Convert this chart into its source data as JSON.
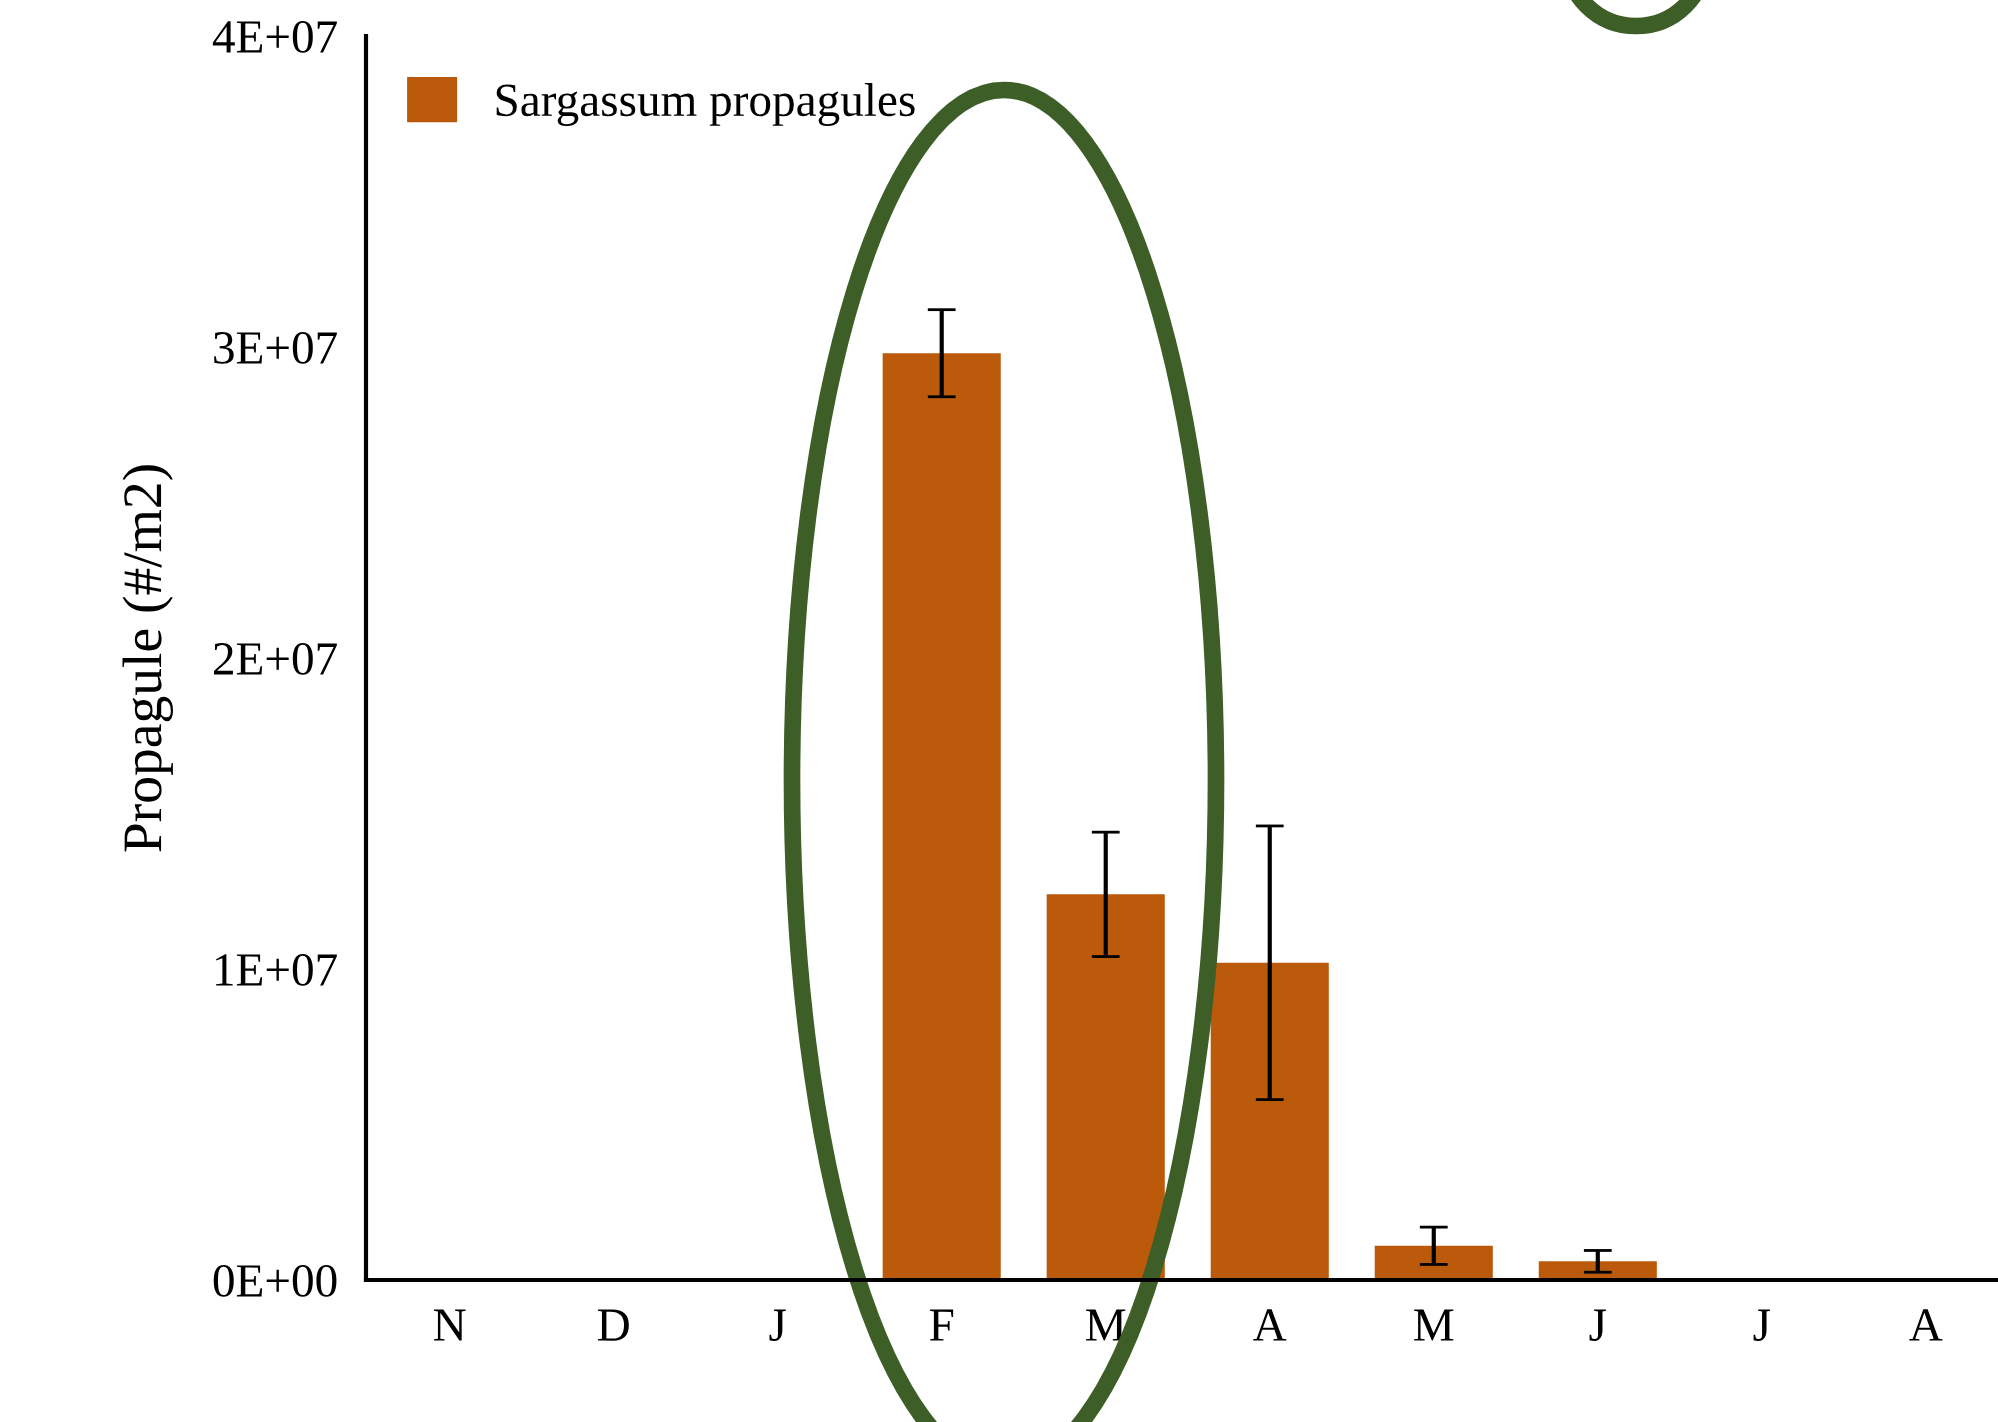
{
  "chart_data": {
    "type": "bar",
    "ylabel": "Propagule (#/m2)",
    "categories": [
      "N",
      "D",
      "J",
      "F",
      "M",
      "A",
      "M",
      "J",
      "J",
      "A"
    ],
    "series": [
      {
        "name": "Sargassum propagules",
        "color": "#bb5a0a",
        "values": [
          0,
          0,
          0,
          29800000,
          12400000,
          10200000,
          1100000,
          600000,
          0,
          0
        ],
        "errors": [
          null,
          null,
          null,
          1400000,
          2000000,
          4400000,
          600000,
          350000,
          null,
          null
        ]
      }
    ],
    "ylim": [
      0,
      40000000
    ],
    "yticks": [
      {
        "value": 0,
        "label": "0E+00"
      },
      {
        "value": 10000000,
        "label": "1E+07"
      },
      {
        "value": 20000000,
        "label": "2E+07"
      },
      {
        "value": 30000000,
        "label": "3E+07"
      },
      {
        "value": 40000000,
        "label": "4E+07"
      }
    ],
    "grid": false,
    "legend": "top left"
  }
}
